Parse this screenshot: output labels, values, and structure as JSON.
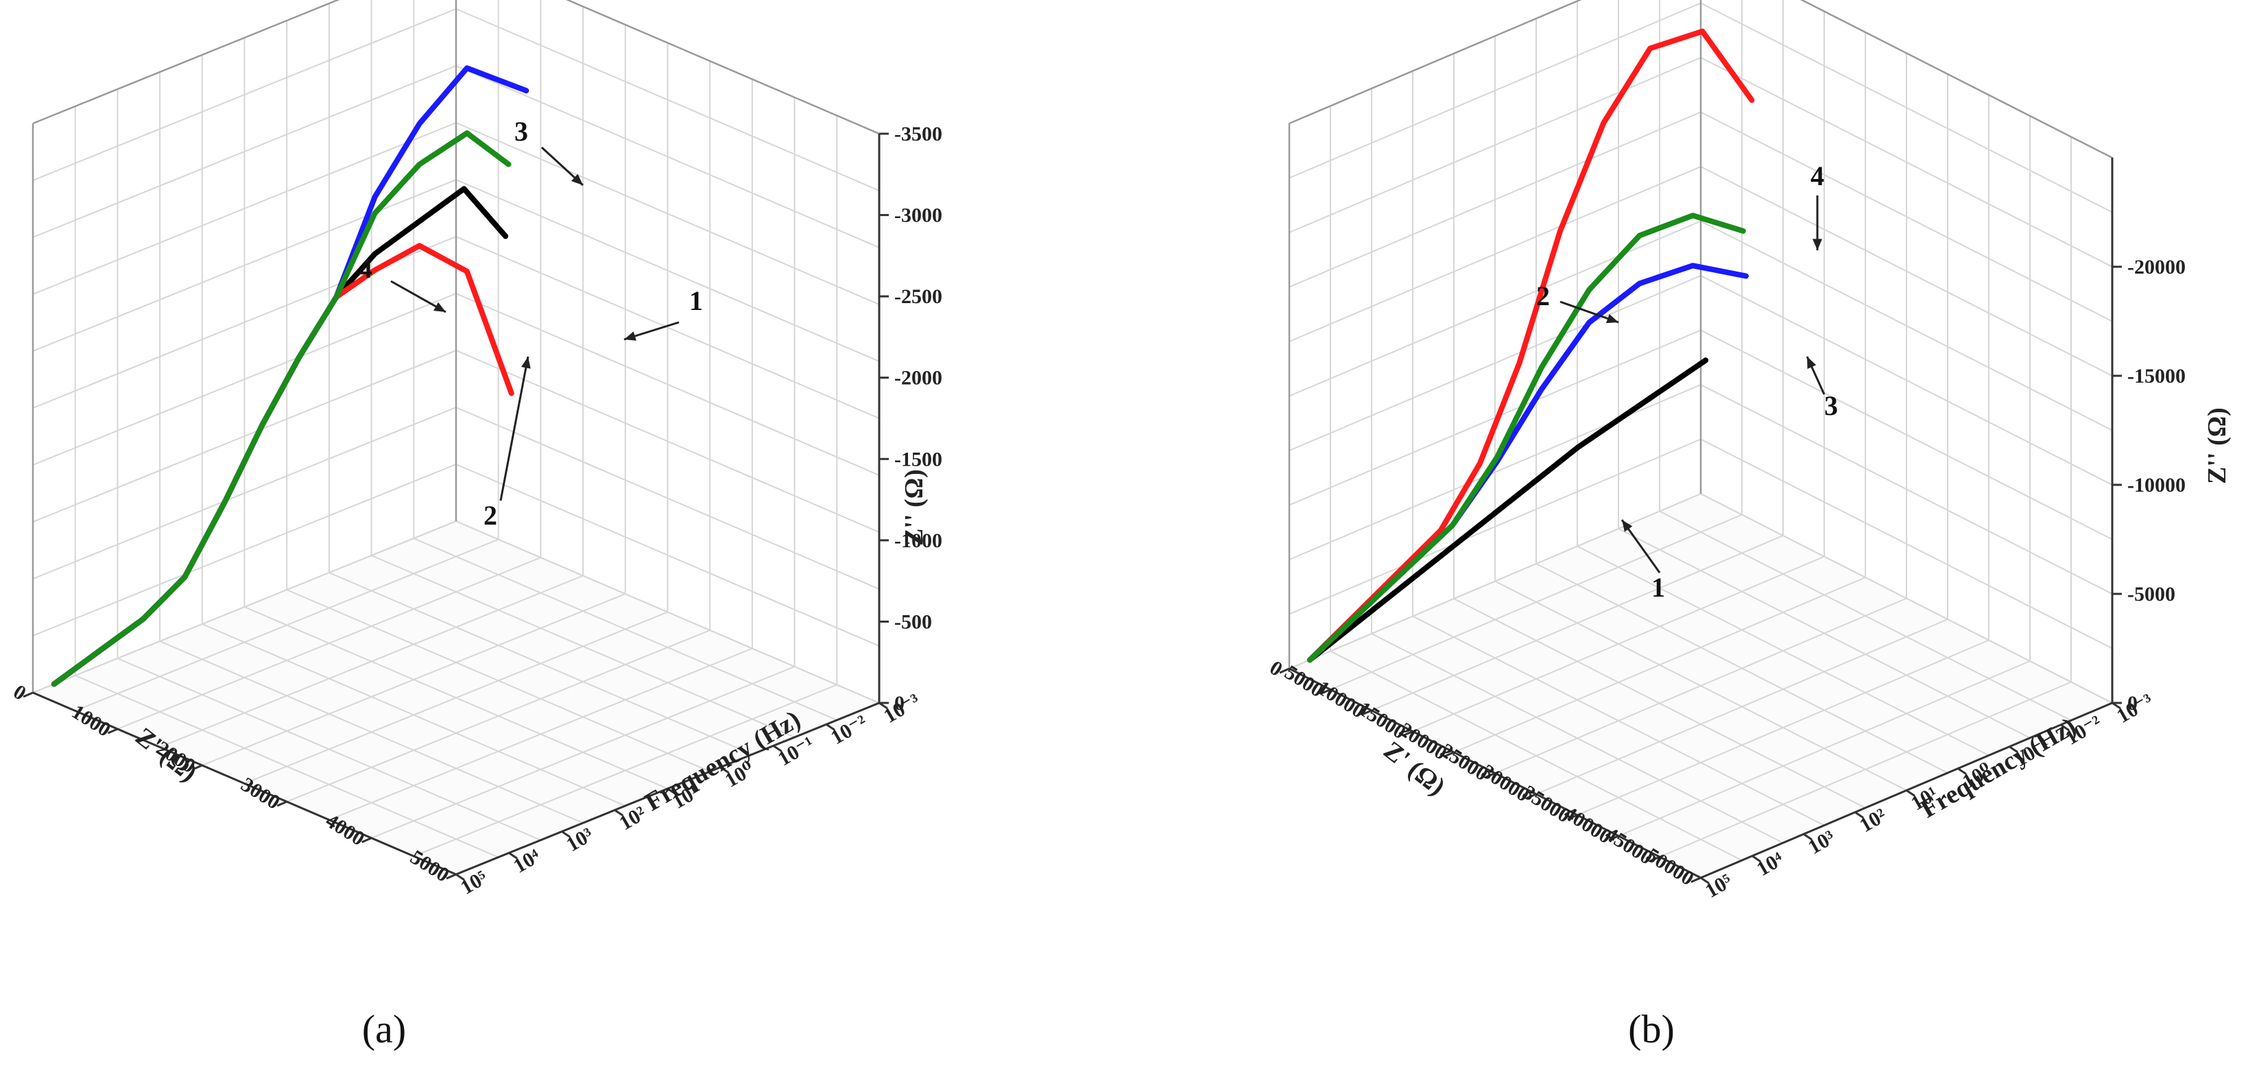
{
  "chart_data": [
    {
      "type": "line",
      "panel_label": "(a)",
      "xlabel": "Z' (Ω)",
      "ylabel": "Frequency (Hz)",
      "zlabel": "Z'' (Ω)",
      "x_ticks": [
        "0",
        "1000",
        "2000",
        "3000",
        "4000",
        "5000"
      ],
      "y_ticks": [
        "10⁻³",
        "10⁻²",
        "10⁻¹",
        "10⁰",
        "10¹",
        "10²",
        "10³",
        "10⁴",
        "10⁵"
      ],
      "z_ticks": [
        "0",
        "-500",
        "-1000",
        "-1500",
        "-2000",
        "-2500",
        "-3000",
        "-3500"
      ],
      "xlim": [
        0,
        5000
      ],
      "zlim": [
        0,
        -3500
      ],
      "grid": true,
      "series": [
        {
          "name": "1",
          "color": "#000000",
          "x": [
            0,
            400,
            800,
            1100,
            1350,
            1500,
            1650,
            1800,
            2000,
            2400,
            2800,
            3100
          ],
          "z": [
            0,
            -150,
            -300,
            -500,
            -900,
            -1300,
            -1650,
            -1950,
            -2150,
            -2300,
            -2450,
            -2100
          ]
        },
        {
          "name": "2",
          "color": "#ff1a1a",
          "x": [
            0,
            400,
            800,
            1100,
            1350,
            1500,
            1650,
            1800,
            2000,
            2400,
            2900,
            3300
          ],
          "z": [
            0,
            -150,
            -300,
            -500,
            -900,
            -1300,
            -1650,
            -1950,
            -2050,
            -2150,
            -1950,
            -1150
          ]
        },
        {
          "name": "3",
          "color": "#1a1aff",
          "x": [
            0,
            400,
            800,
            1100,
            1350,
            1500,
            1650,
            1800,
            2000,
            2400,
            2900,
            3800
          ],
          "z": [
            0,
            -150,
            -300,
            -500,
            -900,
            -1300,
            -1650,
            -1950,
            -2500,
            -2900,
            -3200,
            -3050
          ]
        },
        {
          "name": "4",
          "color": "#1a8c1a",
          "x": [
            0,
            400,
            800,
            1100,
            1350,
            1500,
            1650,
            1800,
            2000,
            2400,
            2900,
            3200
          ],
          "z": [
            0,
            -150,
            -300,
            -500,
            -900,
            -1300,
            -1650,
            -1950,
            -2400,
            -2650,
            -2800,
            -2550
          ]
        }
      ],
      "annotations": [
        "1",
        "2",
        "3",
        "4"
      ]
    },
    {
      "type": "line",
      "panel_label": "(b)",
      "xlabel": "Z' (Ω)",
      "ylabel": "Frequency (Hz)",
      "zlabel": "Z'' (Ω)",
      "x_ticks": [
        "0",
        "5000",
        "10000",
        "15000",
        "20000",
        "25000",
        "30000",
        "35000",
        "40000",
        "45000",
        "50000"
      ],
      "y_ticks": [
        "10⁻³",
        "10⁻²",
        "10⁻¹",
        "10⁰",
        "10¹",
        "10²",
        "10³",
        "10⁴",
        "10⁵"
      ],
      "z_ticks": [
        "0",
        "-5000",
        "-10000",
        "-15000",
        "-20000"
      ],
      "xlim": [
        0,
        50000
      ],
      "zlim": [
        0,
        -25000
      ],
      "grid": true,
      "series": [
        {
          "name": "1",
          "color": "#000000",
          "x": [
            0,
            3000,
            6000,
            9000,
            12000,
            14000,
            16000
          ],
          "z": [
            0,
            -1500,
            -3000,
            -4500,
            -6000,
            -7000,
            -8000
          ]
        },
        {
          "name": "2",
          "color": "#ff1a1a",
          "x": [
            0,
            3000,
            6000,
            9000,
            10500,
            12000,
            14000,
            17000,
            21000,
            27000,
            32000
          ],
          "z": [
            0,
            -1500,
            -3000,
            -4500,
            -7000,
            -11000,
            -16500,
            -21000,
            -24000,
            -24500,
            -21000
          ]
        },
        {
          "name": "3",
          "color": "#1a1aff",
          "x": [
            0,
            3000,
            6000,
            9000,
            11000,
            13000,
            16000,
            20000,
            25000,
            30000
          ],
          "z": [
            0,
            -1500,
            -3000,
            -4500,
            -6800,
            -9500,
            -12000,
            -13300,
            -13700,
            -12800
          ]
        },
        {
          "name": "4",
          "color": "#1a8c1a",
          "x": [
            0,
            3000,
            6000,
            9000,
            11000,
            13000,
            16000,
            20000,
            25000,
            29000
          ],
          "z": [
            0,
            -1500,
            -3000,
            -4500,
            -7000,
            -10500,
            -13500,
            -15500,
            -16000,
            -14800
          ]
        }
      ],
      "annotations": [
        "1",
        "2",
        "3",
        "4"
      ]
    }
  ]
}
